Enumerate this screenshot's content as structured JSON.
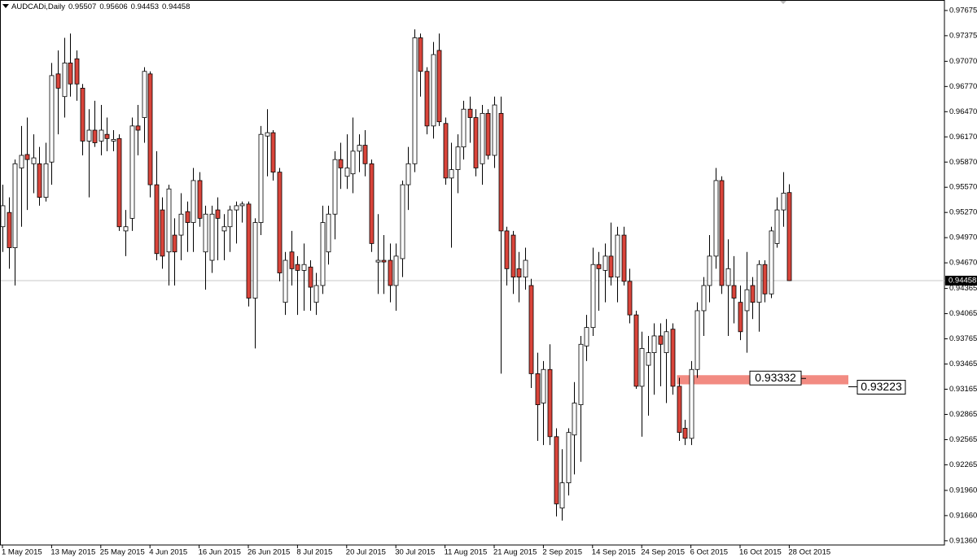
{
  "chart_data": {
    "type": "candlestick",
    "symbol": "AUDCADi,Daily",
    "categories": [
      "1 May 2015",
      null,
      null,
      null,
      null,
      null,
      null,
      null,
      "13 May 2015",
      null,
      null,
      null,
      null,
      null,
      null,
      null,
      "25 May 2015",
      null,
      null,
      null,
      null,
      null,
      null,
      null,
      "4 Jun 2015",
      null,
      null,
      null,
      null,
      null,
      null,
      null,
      "16 Jun 2015",
      null,
      null,
      null,
      null,
      null,
      null,
      null,
      "26 Jun 2015",
      null,
      null,
      null,
      null,
      null,
      null,
      null,
      "8 Jul 2015",
      null,
      null,
      null,
      null,
      null,
      null,
      null,
      "20 Jul 2015",
      null,
      null,
      null,
      null,
      null,
      null,
      null,
      "30 Jul 2015",
      null,
      null,
      null,
      null,
      null,
      null,
      null,
      "11 Aug 2015",
      null,
      null,
      null,
      null,
      null,
      null,
      null,
      "21 Aug 2015",
      null,
      null,
      null,
      null,
      null,
      null,
      null,
      "2 Sep 2015",
      null,
      null,
      null,
      null,
      null,
      null,
      null,
      "14 Sep 2015",
      null,
      null,
      null,
      null,
      null,
      null,
      null,
      "24 Sep 2015",
      null,
      null,
      null,
      null,
      null,
      null,
      null,
      "6 Oct 2015",
      null,
      null,
      null,
      null,
      null,
      null,
      null,
      "16 Oct 2015",
      null,
      null,
      null,
      null,
      null,
      null,
      null,
      "28 Oct 2015"
    ],
    "open": [
      0.951,
      0.9527,
      0.9485,
      0.958,
      0.9596,
      0.9585,
      0.9585,
      0.9545,
      0.9587,
      0.9692,
      0.9665,
      0.9705,
      0.971,
      0.9675,
      0.9612,
      0.9625,
      0.9612,
      0.962,
      0.9612,
      0.9615,
      0.9505,
      0.952,
      0.963,
      0.964,
      0.9692,
      0.956,
      0.953,
      0.948,
      0.95,
      0.95,
      0.9528,
      0.9515,
      0.9565,
      0.948,
      0.947,
      0.953,
      0.9505,
      0.951,
      0.953,
      0.9535,
      0.9537,
      0.9425,
      0.9515,
      0.9618,
      0.9622,
      0.9575,
      0.942,
      0.948,
      0.9465,
      0.9458,
      0.9462,
      0.942,
      0.944,
      0.948,
      0.9525,
      0.959,
      0.957,
      0.9573,
      0.96,
      0.9607,
      0.9585,
      0.9468,
      0.947,
      0.947,
      0.944,
      0.9472,
      0.956,
      0.9585,
      0.9735,
      0.9695,
      0.963,
      0.972,
      0.9633,
      0.9568,
      0.9578,
      0.9605,
      0.965,
      0.964,
      0.9585,
      0.9645,
      0.9595,
      0.9645,
      0.9505,
      0.95,
      0.946,
      0.945,
      0.944,
      0.9335,
      0.93,
      0.934,
      0.926,
      0.9175,
      0.9205,
      0.9262,
      0.9298,
      0.9368,
      0.939,
      0.9465,
      0.9458,
      0.9475,
      0.945,
      0.95,
      0.9445,
      0.9405,
      0.932,
      0.9345,
      0.936,
      0.938,
      0.936,
      0.9388,
      0.932,
      0.927,
      0.9258,
      0.934,
      0.941,
      0.944,
      0.9475,
      0.9565,
      0.944,
      0.944,
      0.942,
      0.941,
      0.944,
      0.942,
      0.9465,
      0.943,
      0.949,
      0.953,
      0.95507
    ],
    "high": [
      0.956,
      0.9545,
      0.959,
      0.963,
      0.964,
      0.962,
      0.9605,
      0.961,
      0.9705,
      0.972,
      0.9735,
      0.974,
      0.972,
      0.968,
      0.965,
      0.966,
      0.9655,
      0.964,
      0.9625,
      0.962,
      0.953,
      0.964,
      0.9655,
      0.97,
      0.9695,
      0.96,
      0.9545,
      0.956,
      0.952,
      0.955,
      0.954,
      0.958,
      0.9575,
      0.9535,
      0.9535,
      0.9545,
      0.9525,
      0.9535,
      0.954,
      0.954,
      0.954,
      0.952,
      0.963,
      0.965,
      0.9625,
      0.958,
      0.948,
      0.9505,
      0.9475,
      0.949,
      0.947,
      0.9455,
      0.9535,
      0.9535,
      0.96,
      0.961,
      0.962,
      0.964,
      0.962,
      0.9625,
      0.959,
      0.9525,
      0.95,
      0.949,
      0.949,
      0.9565,
      0.9605,
      0.9745,
      0.974,
      0.97,
      0.973,
      0.974,
      0.964,
      0.961,
      0.962,
      0.966,
      0.9665,
      0.965,
      0.9655,
      0.965,
      0.9665,
      0.9665,
      0.951,
      0.9505,
      0.948,
      0.9485,
      0.9448,
      0.936,
      0.935,
      0.937,
      0.927,
      0.9245,
      0.927,
      0.9325,
      0.938,
      0.9405,
      0.9485,
      0.948,
      0.949,
      0.9515,
      0.951,
      0.951,
      0.946,
      0.941,
      0.9385,
      0.938,
      0.9395,
      0.9395,
      0.94,
      0.9395,
      0.933,
      0.928,
      0.935,
      0.942,
      0.945,
      0.95,
      0.958,
      0.957,
      0.9495,
      0.9475,
      0.944,
      0.948,
      0.945,
      0.947,
      0.947,
      0.951,
      0.9545,
      0.9575,
      0.95606
    ],
    "low": [
      0.948,
      0.946,
      0.944,
      0.951,
      0.953,
      0.955,
      0.9535,
      0.954,
      0.956,
      0.962,
      0.964,
      0.9665,
      0.966,
      0.9595,
      0.9545,
      0.9605,
      0.9595,
      0.96,
      0.96,
      0.9505,
      0.9475,
      0.9505,
      0.9595,
      0.961,
      0.9545,
      0.947,
      0.946,
      0.944,
      0.944,
      0.947,
      0.948,
      0.948,
      0.951,
      0.9435,
      0.9455,
      0.947,
      0.947,
      0.948,
      0.949,
      0.9515,
      0.9415,
      0.9365,
      0.95,
      0.957,
      0.9565,
      0.9445,
      0.9405,
      0.944,
      0.9405,
      0.941,
      0.941,
      0.9405,
      0.943,
      0.9465,
      0.9495,
      0.9555,
      0.9555,
      0.955,
      0.9575,
      0.957,
      0.948,
      0.943,
      0.943,
      0.942,
      0.941,
      0.945,
      0.953,
      0.9575,
      0.9665,
      0.962,
      0.9615,
      0.963,
      0.956,
      0.9485,
      0.955,
      0.959,
      0.961,
      0.957,
      0.956,
      0.959,
      0.958,
      0.9335,
      0.944,
      0.943,
      0.942,
      0.9435,
      0.9318,
      0.9255,
      0.925,
      0.925,
      0.9165,
      0.916,
      0.919,
      0.9215,
      0.923,
      0.935,
      0.938,
      0.941,
      0.942,
      0.944,
      0.942,
      0.944,
      0.9395,
      0.9317,
      0.926,
      0.9285,
      0.931,
      0.932,
      0.93,
      0.931,
      0.9255,
      0.925,
      0.925,
      0.933,
      0.938,
      0.942,
      0.946,
      0.943,
      0.938,
      0.9395,
      0.9375,
      0.936,
      0.94,
      0.9385,
      0.942,
      0.9425,
      0.9485,
      0.951,
      0.94453
    ],
    "close": [
      0.9535,
      0.9485,
      0.9585,
      0.9595,
      0.959,
      0.9592,
      0.9545,
      0.9585,
      0.969,
      0.9675,
      0.9705,
      0.968,
      0.968,
      0.9612,
      0.9625,
      0.961,
      0.9625,
      0.9615,
      0.9614,
      0.951,
      0.951,
      0.963,
      0.9625,
      0.9695,
      0.956,
      0.9478,
      0.9475,
      0.9555,
      0.948,
      0.9525,
      0.9515,
      0.9565,
      0.952,
      0.9525,
      0.9525,
      0.952,
      0.951,
      0.953,
      0.9535,
      0.9537,
      0.9425,
      0.9515,
      0.962,
      0.9622,
      0.9575,
      0.9455,
      0.947,
      0.946,
      0.9458,
      0.9465,
      0.9438,
      0.944,
      0.9515,
      0.9525,
      0.959,
      0.958,
      0.958,
      0.96,
      0.9607,
      0.9585,
      0.949,
      0.947,
      0.9468,
      0.944,
      0.9475,
      0.956,
      0.9585,
      0.9735,
      0.9695,
      0.963,
      0.9715,
      0.9635,
      0.9568,
      0.9578,
      0.9605,
      0.965,
      0.964,
      0.958,
      0.9645,
      0.9595,
      0.9655,
      0.9505,
      0.946,
      0.945,
      0.945,
      0.947,
      0.9335,
      0.9298,
      0.934,
      0.926,
      0.918,
      0.9205,
      0.9265,
      0.93,
      0.937,
      0.939,
      0.9465,
      0.946,
      0.9475,
      0.945,
      0.95,
      0.9445,
      0.9405,
      0.932,
      0.9365,
      0.936,
      0.938,
      0.937,
      0.9385,
      0.932,
      0.9265,
      0.9258,
      0.934,
      0.941,
      0.944,
      0.9475,
      0.9565,
      0.944,
      0.946,
      0.9425,
      0.9385,
      0.9435,
      0.942,
      0.9465,
      0.943,
      0.9505,
      0.953,
      0.955,
      0.94458
    ],
    "up_color": "#ffffff",
    "down_color": "#d9443a",
    "levels": [
      0.93332,
      0.93223
    ],
    "zone_color": "#f28b82",
    "ylim": [
      0.9131,
      0.978
    ],
    "yticks": [
      0.97675,
      0.97375,
      {
        "value": 0.9707,
        "label": "0.97070"
      },
      {
        "value": 0.9677,
        "label": "0.96770"
      },
      {
        "value": 0.9647,
        "label": "0.96470"
      },
      {
        "value": 0.9617,
        "label": "0.96170"
      },
      {
        "value": 0.9587,
        "label": "0.95870"
      },
      {
        "value": 0.9557,
        "label": "0.95570"
      },
      {
        "value": 0.9527,
        "label": "0.95270"
      },
      {
        "value": 0.9497,
        "label": "0.94970"
      },
      {
        "value": 0.9467,
        "label": "0.94670"
      },
      0.94365,
      0.94065,
      0.93765,
      0.93465,
      0.93165,
      0.92865,
      0.92565,
      0.92265,
      {
        "value": 0.9196,
        "label": "0.91960"
      },
      {
        "value": 0.9166,
        "label": "0.91660"
      },
      {
        "value": 0.9136,
        "label": "0.91360"
      }
    ]
  }
}
